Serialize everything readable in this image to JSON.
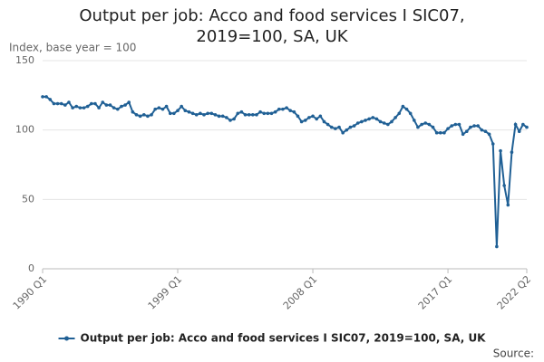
{
  "chart_data": {
    "type": "line",
    "title": "Output per job: Acco and food services I SIC07, 2019=100, SA, UK",
    "ylabel": "Index, base year = 100",
    "source": "Source:",
    "categories": [
      "1990 Q1",
      null,
      null,
      null,
      null,
      null,
      null,
      null,
      null,
      null,
      null,
      null,
      null,
      null,
      null,
      null,
      null,
      null,
      null,
      null,
      null,
      null,
      null,
      null,
      null,
      null,
      null,
      null,
      null,
      null,
      null,
      null,
      null,
      null,
      null,
      null,
      "1999 Q1",
      null,
      null,
      null,
      null,
      null,
      null,
      null,
      null,
      null,
      null,
      null,
      null,
      null,
      null,
      null,
      null,
      null,
      null,
      null,
      null,
      null,
      null,
      null,
      null,
      null,
      null,
      null,
      null,
      null,
      null,
      null,
      null,
      null,
      null,
      null,
      "2008 Q1",
      null,
      null,
      null,
      null,
      null,
      null,
      null,
      null,
      null,
      null,
      null,
      null,
      null,
      null,
      null,
      null,
      null,
      null,
      null,
      null,
      null,
      null,
      null,
      null,
      null,
      null,
      null,
      null,
      null,
      null,
      null,
      null,
      null,
      null,
      null,
      "2017 Q1",
      null,
      null,
      null,
      null,
      null,
      null,
      null,
      null,
      null,
      null,
      null,
      null,
      null,
      null,
      null,
      null,
      null,
      null,
      null,
      null,
      "2022 Q2"
    ],
    "series": [
      {
        "name": "Output per job: Acco and food services I SIC07, 2019=100, SA, UK",
        "color": "#206095",
        "values": [
          124,
          124,
          122,
          119,
          119,
          119,
          118,
          120,
          116,
          117,
          116,
          116,
          117,
          119,
          119,
          116,
          120,
          118,
          118,
          116,
          115,
          117,
          118,
          120,
          113,
          111,
          110,
          111,
          110,
          111,
          115,
          116,
          115,
          117,
          112,
          112,
          114,
          117,
          114,
          113,
          112,
          111,
          112,
          111,
          112,
          112,
          111,
          110,
          110,
          109,
          107,
          108,
          112,
          113,
          111,
          111,
          111,
          111,
          113,
          112,
          112,
          112,
          113,
          115,
          115,
          116,
          114,
          113,
          110,
          106,
          107,
          109,
          110,
          108,
          110,
          106,
          104,
          102,
          101,
          102,
          98,
          100,
          102,
          103,
          105,
          106,
          107,
          108,
          109,
          108,
          106,
          105,
          104,
          106,
          109,
          112,
          117,
          115,
          112,
          107,
          102,
          104,
          105,
          104,
          102,
          98,
          98,
          98,
          101,
          103,
          104,
          104,
          97,
          99,
          102,
          103,
          103,
          100,
          99,
          97,
          90,
          16,
          85,
          60,
          46,
          84,
          104,
          99,
          104,
          102
        ]
      }
    ],
    "ylim": [
      0,
      150
    ],
    "yticks": [
      0,
      50,
      100,
      150
    ],
    "grid": true,
    "legend": "bottom"
  }
}
